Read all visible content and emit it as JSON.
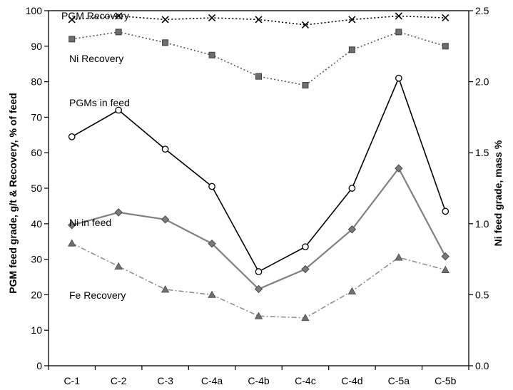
{
  "chart_data": {
    "type": "line",
    "categories": [
      "C-1",
      "C-2",
      "C-3",
      "C-4a",
      "C-4b",
      "C-4c",
      "C-4d",
      "C-5a",
      "C-5b"
    ],
    "ylabel_left": "PGM feed grade, g/t & Recovery, % of feed",
    "ylabel_right": "Ni feed grade, mass %",
    "ylim_left": [
      0,
      100
    ],
    "ylim_right": [
      0.0,
      2.5
    ],
    "yticks_left": [
      "0",
      "10",
      "20",
      "30",
      "40",
      "50",
      "60",
      "70",
      "80",
      "90",
      "100"
    ],
    "yticks_right": [
      "0.0",
      "0.5",
      "1.0",
      "1.5",
      "2.0",
      "2.5"
    ],
    "grid": false,
    "legend": "none",
    "series": [
      {
        "name": "PGM Recovery",
        "axis": "left",
        "values": [
          97.5,
          98.5,
          97.5,
          98.0,
          97.5,
          96.0,
          97.5,
          98.5,
          98.0
        ],
        "color": "#000000",
        "marker": "x",
        "dash": "dotted"
      },
      {
        "name": "Ni Recovery",
        "axis": "left",
        "values": [
          92.0,
          94.0,
          91.0,
          87.5,
          81.5,
          79.0,
          89.0,
          94.0,
          90.0
        ],
        "color": "#555555",
        "marker": "square",
        "dash": "dotted"
      },
      {
        "name": "PGMs in feed",
        "axis": "left",
        "values": [
          64.5,
          72.0,
          61.0,
          50.5,
          26.5,
          33.5,
          50.0,
          81.0,
          43.5
        ],
        "color": "#000000",
        "marker": "circle",
        "dash": "solid"
      },
      {
        "name": "Ni in feed",
        "axis": "right",
        "values": [
          0.99,
          1.08,
          1.03,
          0.86,
          0.54,
          0.68,
          0.96,
          1.39,
          0.77
        ],
        "color": "#808080",
        "marker": "diamond",
        "dash": "solid"
      },
      {
        "name": "Fe Recovery",
        "axis": "left",
        "values": [
          34.5,
          28.0,
          21.5,
          20.0,
          14.0,
          13.5,
          21.0,
          30.5,
          27.0
        ],
        "color": "#909090",
        "marker": "triangle",
        "dash": "dashdot"
      }
    ]
  }
}
